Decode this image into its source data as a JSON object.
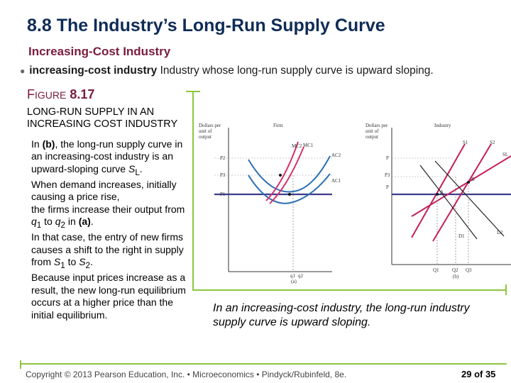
{
  "slide": {
    "title": "8.8  The Industry’s Long-Run Supply Curve",
    "subtitle": "Increasing-Cost Industry",
    "definition": {
      "bullet": "●",
      "term": "increasing-cost industry",
      "text": " Industry whose long-run supply curve is upward sloping."
    },
    "figure_label": {
      "first_letter": "F",
      "rest": "IGURE",
      "number": "8.17"
    },
    "figure_caption_lines": [
      "LONG-RUN SUPPLY IN AN",
      "INCREASING COST INDUSTRY"
    ],
    "explanation": {
      "p1_a": "In ",
      "p1_b": "(b)",
      "p1_c": ", the long-run supply curve in an increasing-cost industry is an upward-sloping curve ",
      "p1_d": "S",
      "p1_e": "L",
      "p1_f": ".",
      "p2": "When demand increases, initially causing a price rise,",
      "p3_a": "the firms increase their output from ",
      "p3_b": "q",
      "p3_c": "1",
      "p3_d": " to ",
      "p3_e": "q",
      "p3_f": "2",
      "p3_g": " in ",
      "p3_h": "(a)",
      "p3_i": ".",
      "p4_a": "In that case, the entry of new firms causes a shift to the right in supply from ",
      "p4_b": "S",
      "p4_c": "1",
      "p4_d": " to ",
      "p4_e": "S",
      "p4_f": "2",
      "p4_g": ".",
      "p5": "Because input prices increase as a result, the new long-run equilibrium occurs at a higher price than the initial equilibrium."
    },
    "note": "In an increasing-cost industry, the long-run industry supply curve is upward sloping.",
    "footer": "Copyright © 2013  Pearson Education, Inc. •  Microeconomics  •  Pindyck/Rubinfeld, 8e.",
    "page_number": "29 of 35"
  },
  "figure": {
    "firm": {
      "title": "Firm",
      "ylabel_lines": [
        "Dollars per",
        "unit of",
        "output"
      ],
      "price_labels": [
        "P2",
        "P3",
        "P1"
      ],
      "curves": [
        "MC2",
        "MC1",
        "AC2",
        "AC1"
      ],
      "quantities": [
        "q1",
        "q2"
      ],
      "panel": "(a)"
    },
    "industry": {
      "title": "Industry",
      "ylabel_lines": [
        "Dollars per",
        "unit of",
        "output"
      ],
      "price_labels": [
        "P",
        "P3",
        "P"
      ],
      "curves": [
        "S1",
        "S2",
        "SL",
        "D1",
        "D2"
      ],
      "points": [
        "A",
        "B"
      ],
      "quantities": [
        "Q1",
        "Q2",
        "Q3"
      ],
      "panel": "(b)"
    },
    "colors": {
      "price_line": "#3b3b8f",
      "mc": "#d6336c",
      "ac": "#2a6fb3",
      "supply": "#c41e5b",
      "demand": "#222222"
    }
  }
}
